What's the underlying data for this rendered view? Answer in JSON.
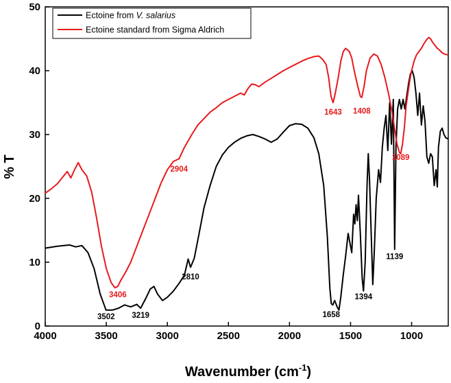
{
  "chart_data": {
    "type": "line",
    "xlabel": "Wavenumber (cm",
    "xlabel_sup": "-1",
    "xlabel_end": ")",
    "ylabel": "% T",
    "xlim": [
      4000,
      700
    ],
    "ylim": [
      0,
      50
    ],
    "x_ticks": [
      4000,
      3500,
      3000,
      2500,
      2000,
      1500,
      1000
    ],
    "x_tick_labels": [
      "4000",
      "3500",
      "3000",
      "2500",
      "2000",
      "1500",
      "1000"
    ],
    "y_ticks": [
      0,
      10,
      20,
      30,
      40,
      50
    ],
    "y_tick_labels": [
      "0",
      "10",
      "20",
      "30",
      "40",
      "50"
    ],
    "legend_position": "top-left",
    "legend": [
      {
        "prefix": "Ectoine from ",
        "italic": "V. salarius",
        "color": "#000000"
      },
      {
        "prefix": "Ectoine standard from Sigma Aldrich",
        "italic": "",
        "color": "#e8191c"
      }
    ],
    "series": [
      {
        "name": "Ectoine from V. salarius",
        "color": "#000000",
        "points": [
          [
            4000,
            12.2
          ],
          [
            3900,
            12.5
          ],
          [
            3800,
            12.7
          ],
          [
            3750,
            12.4
          ],
          [
            3700,
            12.6
          ],
          [
            3650,
            11.5
          ],
          [
            3600,
            9.0
          ],
          [
            3550,
            5.0
          ],
          [
            3502,
            2.5
          ],
          [
            3450,
            2.5
          ],
          [
            3400,
            2.8
          ],
          [
            3350,
            3.3
          ],
          [
            3300,
            3.0
          ],
          [
            3250,
            3.4
          ],
          [
            3219,
            2.8
          ],
          [
            3180,
            4.2
          ],
          [
            3140,
            5.8
          ],
          [
            3110,
            6.2
          ],
          [
            3080,
            5.0
          ],
          [
            3040,
            4.0
          ],
          [
            3000,
            4.5
          ],
          [
            2950,
            5.5
          ],
          [
            2900,
            6.8
          ],
          [
            2860,
            8.0
          ],
          [
            2830,
            10.5
          ],
          [
            2810,
            9.2
          ],
          [
            2780,
            10.6
          ],
          [
            2740,
            14.5
          ],
          [
            2700,
            18.5
          ],
          [
            2650,
            22.0
          ],
          [
            2600,
            25.0
          ],
          [
            2550,
            26.8
          ],
          [
            2500,
            28.0
          ],
          [
            2450,
            28.8
          ],
          [
            2400,
            29.4
          ],
          [
            2350,
            29.8
          ],
          [
            2300,
            30.0
          ],
          [
            2250,
            29.7
          ],
          [
            2200,
            29.3
          ],
          [
            2150,
            28.8
          ],
          [
            2100,
            29.3
          ],
          [
            2050,
            30.4
          ],
          [
            2000,
            31.4
          ],
          [
            1950,
            31.7
          ],
          [
            1900,
            31.6
          ],
          [
            1850,
            31.0
          ],
          [
            1800,
            29.5
          ],
          [
            1760,
            27.0
          ],
          [
            1720,
            22.0
          ],
          [
            1690,
            14.0
          ],
          [
            1670,
            6.0
          ],
          [
            1658,
            3.5
          ],
          [
            1645,
            3.3
          ],
          [
            1630,
            4.0
          ],
          [
            1610,
            3.0
          ],
          [
            1595,
            2.5
          ],
          [
            1580,
            4.5
          ],
          [
            1560,
            8.0
          ],
          [
            1540,
            11.0
          ],
          [
            1520,
            14.5
          ],
          [
            1505,
            13.0
          ],
          [
            1490,
            11.5
          ],
          [
            1475,
            17.5
          ],
          [
            1465,
            16.0
          ],
          [
            1455,
            19.0
          ],
          [
            1445,
            16.5
          ],
          [
            1435,
            20.5
          ],
          [
            1420,
            14.5
          ],
          [
            1405,
            7.5
          ],
          [
            1394,
            5.5
          ],
          [
            1380,
            10.0
          ],
          [
            1365,
            22.0
          ],
          [
            1355,
            27.0
          ],
          [
            1345,
            23.0
          ],
          [
            1330,
            14.0
          ],
          [
            1318,
            6.5
          ],
          [
            1305,
            12.0
          ],
          [
            1290,
            20.0
          ],
          [
            1270,
            24.5
          ],
          [
            1255,
            22.5
          ],
          [
            1240,
            28.0
          ],
          [
            1225,
            31.0
          ],
          [
            1210,
            33.0
          ],
          [
            1195,
            27.5
          ],
          [
            1180,
            35.0
          ],
          [
            1165,
            28.5
          ],
          [
            1150,
            35.5
          ],
          [
            1139,
            12.0
          ],
          [
            1128,
            28.0
          ],
          [
            1115,
            34.0
          ],
          [
            1100,
            35.5
          ],
          [
            1085,
            34.0
          ],
          [
            1070,
            35.5
          ],
          [
            1055,
            34.0
          ],
          [
            1040,
            36.0
          ],
          [
            1025,
            38.0
          ],
          [
            1010,
            39.5
          ],
          [
            995,
            40.0
          ],
          [
            980,
            39.0
          ],
          [
            965,
            36.5
          ],
          [
            950,
            33.0
          ],
          [
            935,
            36.5
          ],
          [
            920,
            31.5
          ],
          [
            905,
            34.5
          ],
          [
            890,
            32.0
          ],
          [
            875,
            26.5
          ],
          [
            860,
            25.5
          ],
          [
            845,
            27.0
          ],
          [
            830,
            26.5
          ],
          [
            815,
            22.0
          ],
          [
            800,
            24.5
          ],
          [
            790,
            21.8
          ],
          [
            780,
            28.0
          ],
          [
            765,
            30.5
          ],
          [
            750,
            31.0
          ],
          [
            735,
            30.0
          ],
          [
            720,
            29.5
          ],
          [
            700,
            29.3
          ]
        ]
      },
      {
        "name": "Ectoine standard from Sigma Aldrich",
        "color": "#e8191c",
        "points": [
          [
            4000,
            20.8
          ],
          [
            3950,
            21.5
          ],
          [
            3900,
            22.3
          ],
          [
            3850,
            23.5
          ],
          [
            3820,
            24.2
          ],
          [
            3790,
            23.2
          ],
          [
            3760,
            24.5
          ],
          [
            3730,
            25.6
          ],
          [
            3700,
            24.5
          ],
          [
            3660,
            23.5
          ],
          [
            3620,
            21.0
          ],
          [
            3580,
            17.0
          ],
          [
            3540,
            12.5
          ],
          [
            3500,
            9.0
          ],
          [
            3460,
            6.8
          ],
          [
            3430,
            6.0
          ],
          [
            3406,
            6.2
          ],
          [
            3380,
            7.2
          ],
          [
            3340,
            8.5
          ],
          [
            3300,
            10.0
          ],
          [
            3250,
            12.5
          ],
          [
            3200,
            15.0
          ],
          [
            3150,
            17.5
          ],
          [
            3100,
            20.0
          ],
          [
            3050,
            22.5
          ],
          [
            3000,
            24.5
          ],
          [
            2950,
            25.8
          ],
          [
            2904,
            26.2
          ],
          [
            2860,
            28.0
          ],
          [
            2800,
            30.0
          ],
          [
            2750,
            31.5
          ],
          [
            2700,
            32.5
          ],
          [
            2650,
            33.5
          ],
          [
            2600,
            34.2
          ],
          [
            2550,
            35.0
          ],
          [
            2500,
            35.5
          ],
          [
            2450,
            36.0
          ],
          [
            2400,
            36.5
          ],
          [
            2370,
            36.2
          ],
          [
            2340,
            37.2
          ],
          [
            2310,
            37.9
          ],
          [
            2280,
            37.8
          ],
          [
            2250,
            37.5
          ],
          [
            2200,
            38.2
          ],
          [
            2150,
            38.8
          ],
          [
            2100,
            39.4
          ],
          [
            2050,
            40.0
          ],
          [
            2000,
            40.5
          ],
          [
            1950,
            41.0
          ],
          [
            1900,
            41.5
          ],
          [
            1850,
            41.9
          ],
          [
            1800,
            42.2
          ],
          [
            1760,
            42.3
          ],
          [
            1730,
            41.8
          ],
          [
            1700,
            41.0
          ],
          [
            1680,
            39.0
          ],
          [
            1660,
            36.0
          ],
          [
            1643,
            35.0
          ],
          [
            1625,
            36.5
          ],
          [
            1600,
            39.0
          ],
          [
            1580,
            41.5
          ],
          [
            1560,
            43.0
          ],
          [
            1540,
            43.5
          ],
          [
            1510,
            43.0
          ],
          [
            1490,
            42.0
          ],
          [
            1470,
            40.0
          ],
          [
            1440,
            37.5
          ],
          [
            1420,
            36.0
          ],
          [
            1408,
            35.8
          ],
          [
            1390,
            37.5
          ],
          [
            1370,
            40.0
          ],
          [
            1340,
            42.0
          ],
          [
            1310,
            42.6
          ],
          [
            1280,
            42.3
          ],
          [
            1250,
            41.0
          ],
          [
            1220,
            39.0
          ],
          [
            1190,
            36.5
          ],
          [
            1160,
            33.5
          ],
          [
            1140,
            31.0
          ],
          [
            1120,
            28.5
          ],
          [
            1100,
            27.2
          ],
          [
            1089,
            27.0
          ],
          [
            1075,
            28.5
          ],
          [
            1060,
            31.0
          ],
          [
            1045,
            34.5
          ],
          [
            1030,
            36.5
          ],
          [
            1015,
            38.5
          ],
          [
            1000,
            40.0
          ],
          [
            980,
            41.5
          ],
          [
            960,
            42.5
          ],
          [
            940,
            43.0
          ],
          [
            920,
            43.5
          ],
          [
            900,
            44.2
          ],
          [
            880,
            44.8
          ],
          [
            860,
            45.2
          ],
          [
            845,
            45.0
          ],
          [
            830,
            44.5
          ],
          [
            810,
            44.0
          ],
          [
            790,
            43.5
          ],
          [
            770,
            43.2
          ],
          [
            750,
            42.8
          ],
          [
            730,
            42.6
          ],
          [
            710,
            42.5
          ],
          [
            700,
            42.5
          ]
        ]
      }
    ],
    "annotations": [
      {
        "text": "3502",
        "x": 3502,
        "y": 1.1,
        "color": "#000000"
      },
      {
        "text": "3219",
        "x": 3219,
        "y": 1.3,
        "color": "#000000"
      },
      {
        "text": "2810",
        "x": 2810,
        "y": 7.3,
        "color": "#000000"
      },
      {
        "text": "1658",
        "x": 1658,
        "y": 1.4,
        "color": "#000000"
      },
      {
        "text": "1394",
        "x": 1394,
        "y": 4.2,
        "color": "#000000"
      },
      {
        "text": "1139",
        "x": 1139,
        "y": 10.5,
        "color": "#000000"
      },
      {
        "text": "3406",
        "x": 3406,
        "y": 4.5,
        "color": "#e8191c"
      },
      {
        "text": "2904",
        "x": 2904,
        "y": 24.2,
        "color": "#e8191c"
      },
      {
        "text": "1643",
        "x": 1643,
        "y": 33.1,
        "color": "#e8191c"
      },
      {
        "text": "1408",
        "x": 1408,
        "y": 33.3,
        "color": "#e8191c"
      },
      {
        "text": "1089",
        "x": 1089,
        "y": 26.0,
        "color": "#e8191c"
      }
    ]
  }
}
